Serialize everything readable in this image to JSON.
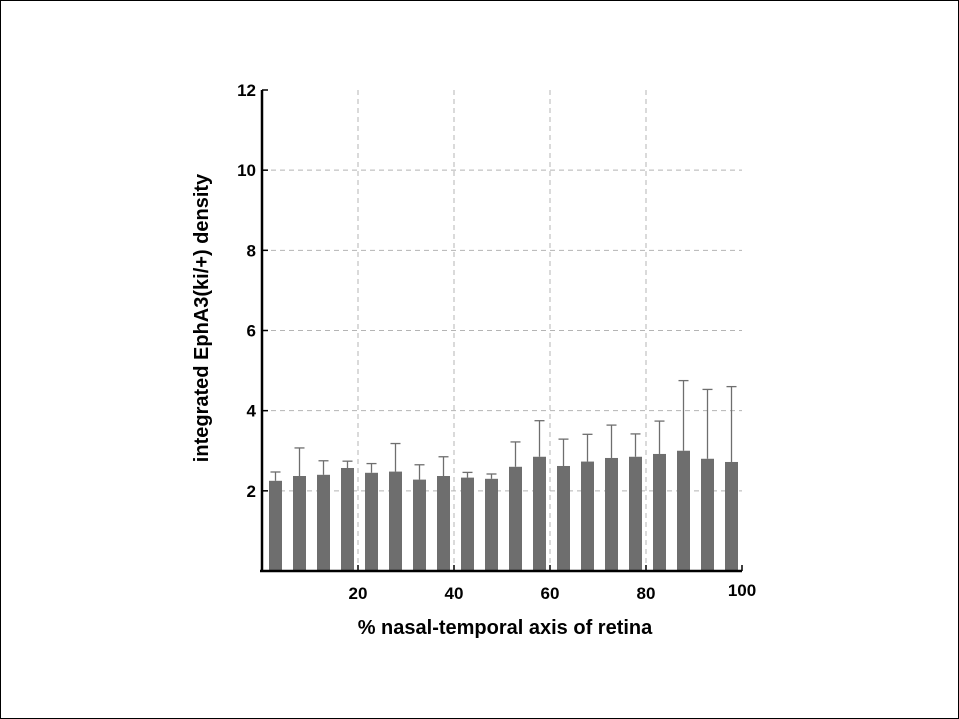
{
  "chart_data": {
    "type": "bar",
    "title": "",
    "xlabel": "% nasal-temporal axis of retina",
    "ylabel": "integrated EphA3(ki/+) density",
    "xlim": [
      0,
      100
    ],
    "ylim": [
      0,
      12
    ],
    "xticks": [
      "20",
      "40",
      "60",
      "80",
      "100"
    ],
    "yticks": [
      "2",
      "4",
      "6",
      "8",
      "10",
      "12"
    ],
    "grid": true,
    "colors": {
      "bar": "#6e6e6e",
      "error": "#6e6e6e",
      "grid": "#b4b4b4"
    },
    "x": [
      5,
      10,
      15,
      20,
      25,
      30,
      35,
      40,
      45,
      50,
      55,
      60,
      65,
      70,
      75,
      80,
      85,
      90,
      95,
      100
    ],
    "values": [
      2.25,
      2.37,
      2.4,
      2.57,
      2.45,
      2.48,
      2.28,
      2.37,
      2.33,
      2.3,
      2.6,
      2.85,
      2.62,
      2.73,
      2.82,
      2.85,
      2.92,
      3.0,
      2.8,
      2.72
    ],
    "errors": [
      0.22,
      0.7,
      0.35,
      0.17,
      0.23,
      0.7,
      0.37,
      0.48,
      0.13,
      0.12,
      0.62,
      0.9,
      0.67,
      0.68,
      0.82,
      0.57,
      0.82,
      1.75,
      1.73,
      1.88
    ]
  }
}
